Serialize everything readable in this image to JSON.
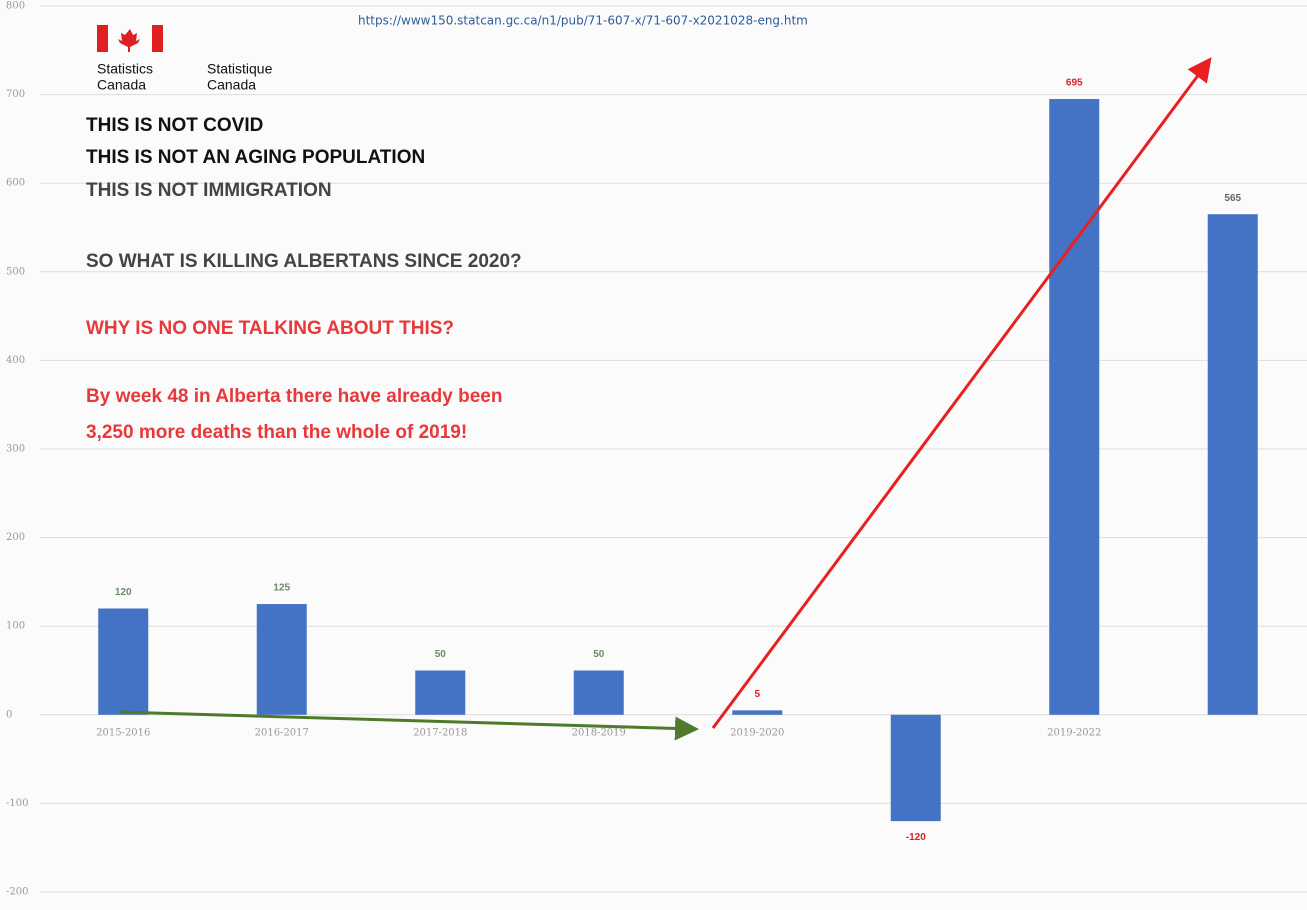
{
  "header": {
    "url": "https://www150.statcan.gc.ca/n1/pub/71-607-x/71-607-x2021028-eng.htm",
    "logo": [
      "Statistics",
      "Canada",
      "Statistique",
      "Canada"
    ]
  },
  "text": [
    "THIS IS NOT COVID",
    "THIS IS NOT AN AGING POPULATION",
    "THIS IS NOT IMMIGRATION",
    "SO WHAT IS KILLING ALBERTANS SINCE 2020?",
    "WHY IS NO ONE TALKING ABOUT THIS?",
    "By week 48 in Alberta there have already been",
    "3,250 more deaths than the whole of 2019!"
  ],
  "chart_data": {
    "type": "bar",
    "categories": [
      "2015-2016",
      "2016-2017",
      "2017-2018",
      "2018-2019",
      "2019-2020",
      null,
      "2019-2022",
      null
    ],
    "values": [
      120,
      125,
      50,
      50,
      5,
      -120,
      695,
      565
    ],
    "color": "#4472c4",
    "value_label_colors": [
      "#6a8a6a",
      "#6a8a6a",
      "#6a8a6a",
      "#6a8a6a",
      "#e02020",
      "#e02020",
      "#e02020",
      "#666"
    ],
    "ylim": [
      -200,
      800
    ],
    "yticks": [
      -200,
      -100,
      0,
      100,
      200,
      300,
      400,
      500,
      600,
      700,
      800
    ],
    "grid": true
  }
}
